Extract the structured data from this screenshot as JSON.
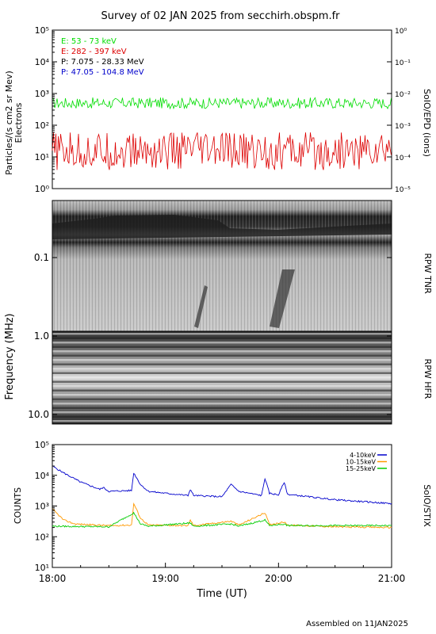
{
  "title": "Survey of 02 JAN 2025 from secchirh.obspm.fr",
  "footer": "Assembled on  11JAN2025",
  "chart_data": [
    {
      "id": "epd",
      "type": "line",
      "scale": "log",
      "ylabel_left": "Particles/(s cm2 sr Mev)",
      "ylabel_left2": "Electrons",
      "ylabel_right": "SoIO/EPD (ions)",
      "ylim_left": [
        1,
        100000
      ],
      "ylim_right": [
        1e-05,
        1
      ],
      "yticks_left": [
        "10⁰",
        "10¹",
        "10²",
        "10³",
        "10⁴",
        "10⁵"
      ],
      "yticks_right": [
        "10⁻⁵",
        "10⁻⁴",
        "10⁻³",
        "10⁻²",
        "10⁻¹",
        "10⁰"
      ],
      "legend": [
        {
          "label": "E: 53 - 73 keV",
          "color": "#00dd00"
        },
        {
          "label": "E: 282 - 397 keV",
          "color": "#dd0000"
        },
        {
          "label": "P: 7.075 - 28.33 MeV",
          "color": "#000000"
        },
        {
          "label": "P: 47.05 - 104.8 MeV",
          "color": "#0000cc"
        }
      ],
      "series": [
        {
          "name": "E: 53 - 73 keV",
          "color": "#00dd00",
          "baseline": 500,
          "noise": 0.35
        },
        {
          "name": "E: 282 - 397 keV",
          "color": "#dd0000",
          "baseline": 15,
          "noise": 1.2
        }
      ]
    },
    {
      "id": "rpw",
      "type": "heatmap",
      "ylabel": "Frequency (MHz)",
      "yticks": [
        "0.1",
        "1.0",
        "10.0"
      ],
      "right_labels": [
        "RPW TNR",
        "RPW HFR"
      ]
    },
    {
      "id": "stix",
      "type": "line",
      "scale": "log",
      "ylabel": "COUNTS",
      "ylabel_right": "SolO/STIX",
      "ylim": [
        10,
        100000
      ],
      "yticks": [
        "10¹",
        "10²",
        "10³",
        "10⁴",
        "10⁵"
      ],
      "xlabel": "Time (UT)",
      "xticks": [
        "18:00",
        "19:00",
        "20:00",
        "21:00"
      ],
      "xlim": [
        "18:00",
        "21:00"
      ],
      "legend": [
        {
          "label": "4-10keV",
          "color": "#0000cc"
        },
        {
          "label": "10-15keV",
          "color": "#ff9900"
        },
        {
          "label": "15-25keV",
          "color": "#00cc00"
        }
      ],
      "series": [
        {
          "name": "4-10keV",
          "color": "#0000cc",
          "points": [
            [
              0,
              20000
            ],
            [
              0.1,
              12000
            ],
            [
              0.25,
              6000
            ],
            [
              0.42,
              3500
            ],
            [
              0.45,
              4000
            ],
            [
              0.5,
              3000
            ],
            [
              0.7,
              3200
            ],
            [
              0.72,
              12000
            ],
            [
              0.78,
              5000
            ],
            [
              0.85,
              3000
            ],
            [
              1.0,
              2600
            ],
            [
              1.2,
              2200
            ],
            [
              1.22,
              3500
            ],
            [
              1.25,
              2200
            ],
            [
              1.5,
              2000
            ],
            [
              1.58,
              5000
            ],
            [
              1.65,
              3000
            ],
            [
              1.85,
              2200
            ],
            [
              1.88,
              8000
            ],
            [
              1.92,
              2600
            ],
            [
              2.0,
              2300
            ],
            [
              2.05,
              6000
            ],
            [
              2.08,
              2400
            ],
            [
              2.5,
              1600
            ],
            [
              3.0,
              1200
            ]
          ]
        },
        {
          "name": "10-15keV",
          "color": "#ff9900",
          "points": [
            [
              0,
              800
            ],
            [
              0.1,
              350
            ],
            [
              0.2,
              260
            ],
            [
              0.5,
              230
            ],
            [
              0.7,
              240
            ],
            [
              0.72,
              1200
            ],
            [
              0.78,
              400
            ],
            [
              0.85,
              240
            ],
            [
              1.2,
              230
            ],
            [
              1.22,
              350
            ],
            [
              1.25,
              230
            ],
            [
              1.58,
              320
            ],
            [
              1.65,
              240
            ],
            [
              1.88,
              600
            ],
            [
              1.92,
              250
            ],
            [
              2.05,
              300
            ],
            [
              2.08,
              240
            ],
            [
              2.5,
              210
            ],
            [
              3.0,
              200
            ]
          ]
        },
        {
          "name": "15-25keV",
          "color": "#00cc00",
          "points": [
            [
              0,
              220
            ],
            [
              0.5,
              210
            ],
            [
              0.72,
              600
            ],
            [
              0.78,
              260
            ],
            [
              0.85,
              220
            ],
            [
              1.22,
              280
            ],
            [
              1.25,
              220
            ],
            [
              1.58,
              260
            ],
            [
              1.65,
              220
            ],
            [
              1.88,
              350
            ],
            [
              1.92,
              230
            ],
            [
              2.05,
              260
            ],
            [
              2.08,
              230
            ],
            [
              3.0,
              230
            ]
          ]
        }
      ]
    }
  ]
}
